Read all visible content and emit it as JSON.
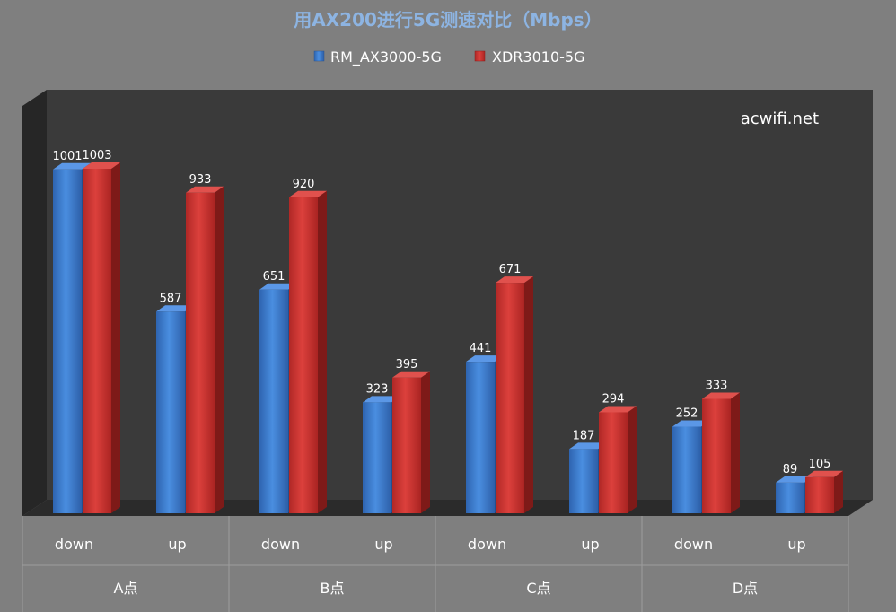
{
  "chart_data": {
    "type": "bar",
    "title": "用AX200进行5G测速对比（Mbps）",
    "watermark": "acwifi.net",
    "legend_position": "top",
    "grid": false,
    "categories": [
      "down",
      "up",
      "down",
      "up",
      "down",
      "up",
      "down",
      "up"
    ],
    "groups": [
      "A点",
      "B点",
      "C点",
      "D点"
    ],
    "series": [
      {
        "name": "RM_AX3000-5G",
        "color": "#3f7fd0",
        "values": [
          1001,
          587,
          651,
          323,
          441,
          187,
          252,
          89
        ]
      },
      {
        "name": "XDR3010-5G",
        "color": "#c8302e",
        "values": [
          1003,
          933,
          920,
          395,
          671,
          294,
          333,
          105
        ]
      }
    ],
    "ylim": [
      0,
      1040
    ],
    "colors": {
      "background": "#7f7f7f",
      "plot_back": "#3a3a3a",
      "title": "#8db4e2"
    }
  }
}
